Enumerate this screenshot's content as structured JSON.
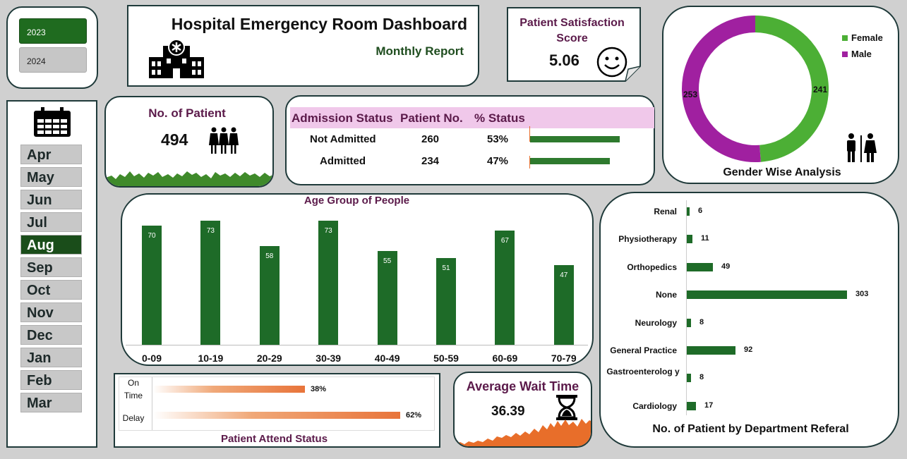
{
  "years": [
    {
      "label": "2023",
      "active": true
    },
    {
      "label": "2024",
      "active": false
    }
  ],
  "header": {
    "title": "Hospital Emergency Room Dashboard",
    "subtitle": "Monthly Report"
  },
  "satisfaction": {
    "label": "Patient Satisfaction Score",
    "value": "5.06"
  },
  "gender": {
    "title": "Gender Wise Analysis",
    "legend": [
      {
        "label": "Female",
        "color": "#4caf35"
      },
      {
        "label": "Male",
        "color": "#a020a0"
      }
    ],
    "female": 241,
    "male": 253
  },
  "months": [
    {
      "label": "Apr",
      "active": false
    },
    {
      "label": "May",
      "active": false
    },
    {
      "label": "Jun",
      "active": false
    },
    {
      "label": "Jul",
      "active": false
    },
    {
      "label": "Aug",
      "active": true
    },
    {
      "label": "Sep",
      "active": false
    },
    {
      "label": "Oct",
      "active": false
    },
    {
      "label": "Nov",
      "active": false
    },
    {
      "label": "Dec",
      "active": false
    },
    {
      "label": "Jan",
      "active": false
    },
    {
      "label": "Feb",
      "active": false
    },
    {
      "label": "Mar",
      "active": false
    }
  ],
  "patients": {
    "label": "No. of Patient",
    "value": "494"
  },
  "admission": {
    "headers": [
      "Admission Status",
      "Patient No.",
      "% Status"
    ],
    "rows": [
      {
        "status": "Not Admitted",
        "count": "260",
        "pct": "53%",
        "fraction": 0.53
      },
      {
        "status": "Admitted",
        "count": "234",
        "pct": "47%",
        "fraction": 0.47
      }
    ]
  },
  "attend": {
    "title": "Patient Attend Status",
    "rows": [
      {
        "label": "On Time",
        "pct": "38%",
        "fraction": 0.38
      },
      {
        "label": "Delay",
        "pct": "62%",
        "fraction": 0.62
      }
    ]
  },
  "wait": {
    "label": "Average Wait Time",
    "value": "36.39"
  },
  "chart_data": [
    {
      "type": "bar",
      "title": "Age Group of People",
      "categories": [
        "0-09",
        "10-19",
        "20-29",
        "30-39",
        "40-49",
        "50-59",
        "60-69",
        "70-79"
      ],
      "values": [
        70,
        73,
        58,
        73,
        55,
        51,
        67,
        47
      ],
      "color": "#1e6b28"
    },
    {
      "type": "bar",
      "orientation": "horizontal",
      "title": "No. of Patient by Department Referal",
      "categories": [
        "Renal",
        "Physiotherapy",
        "Orthopedics",
        "None",
        "Neurology",
        "General Practice",
        "Gastroenterolog y",
        "Cardiology"
      ],
      "values": [
        6,
        11,
        49,
        303,
        8,
        92,
        8,
        17
      ],
      "color": "#1e6b28"
    }
  ]
}
